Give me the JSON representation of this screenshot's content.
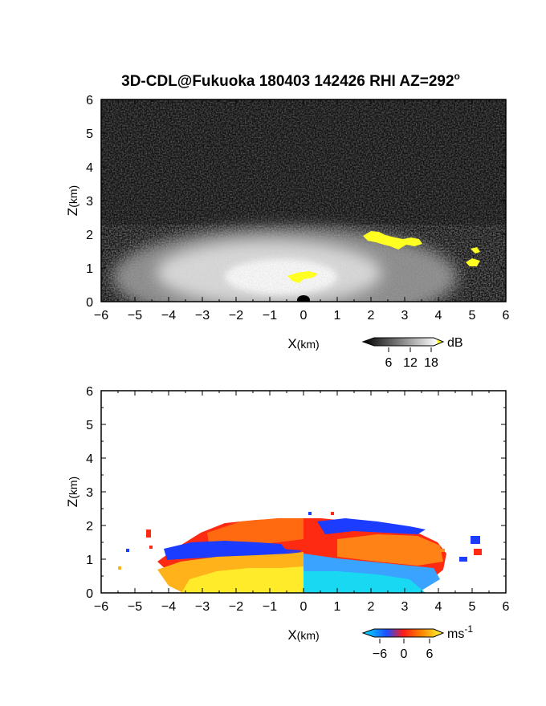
{
  "title": "3D-CDL@Fukuoka 180403 142426 RHI AZ=292",
  "title_superscript": "o",
  "chart_data": [
    {
      "type": "heatmap",
      "name": "backscatter-intensity",
      "xlabel_main": "X",
      "xlabel_unit": "(km)",
      "ylabel_main": "Z",
      "ylabel_unit": "(km)",
      "xlim": [
        -6,
        6
      ],
      "ylim": [
        0,
        6
      ],
      "xticks": [
        -6,
        -5,
        -4,
        -3,
        -2,
        -1,
        0,
        1,
        2,
        3,
        4,
        5,
        6
      ],
      "yticks": [
        0,
        1,
        2,
        3,
        4,
        5,
        6
      ],
      "background": "#111111",
      "colorbar": {
        "unit": "dB",
        "tick_labels": [
          "6",
          "12",
          "18"
        ],
        "range": [
          0,
          20
        ],
        "colors": [
          "#000000",
          "#ffffff",
          "#ffff00"
        ]
      },
      "features": [
        {
          "desc": "bright aerosol layer",
          "x_range": [
            -5,
            4.5
          ],
          "z_top": 2.0
        },
        {
          "desc": "yellow high-intensity patch",
          "x": [
            1.8,
            3.6
          ],
          "z": [
            1.65,
            2.0
          ]
        },
        {
          "desc": "yellow high-intensity patch",
          "x": [
            -0.5,
            0.6
          ],
          "z": [
            0.65,
            0.85
          ]
        },
        {
          "desc": "yellow high-intensity patch",
          "x": [
            4.9,
            5.3
          ],
          "z": [
            1.0,
            1.6
          ]
        }
      ]
    },
    {
      "type": "heatmap",
      "name": "radial-velocity",
      "xlabel_main": "X",
      "xlabel_unit": "(km)",
      "ylabel_main": "Z",
      "ylabel_unit": "(km)",
      "xlim": [
        -6,
        6
      ],
      "ylim": [
        0,
        6
      ],
      "xticks": [
        -6,
        -5,
        -4,
        -3,
        -2,
        -1,
        0,
        1,
        2,
        3,
        4,
        5,
        6
      ],
      "yticks": [
        0,
        1,
        2,
        3,
        4,
        5,
        6
      ],
      "background": "#ffffff",
      "colorbar": {
        "unit": "ms",
        "unit_superscript": "-1",
        "tick_labels": [
          "−6",
          "0",
          "6"
        ],
        "range": [
          -8,
          8
        ],
        "colors": [
          "#00e5ff",
          "#1e4bff",
          "#ff1a1a",
          "#ff8000",
          "#ffff33"
        ]
      },
      "features": [
        {
          "desc": "positive velocity (yellow-orange)",
          "x_range": [
            -3.5,
            0
          ],
          "z": [
            0,
            1.0
          ]
        },
        {
          "desc": "negative velocity (light blue)",
          "x_range": [
            0,
            4
          ],
          "z": [
            0,
            1.0
          ]
        },
        {
          "desc": "red/orange upper layer",
          "x_range": [
            -3,
            4
          ],
          "z": [
            1.0,
            2.1
          ]
        },
        {
          "desc": "blue band",
          "x_range": [
            -4,
            -1.5
          ],
          "z": [
            1.0,
            1.4
          ]
        },
        {
          "desc": "blue band",
          "x_range": [
            0.6,
            3.8
          ],
          "z": [
            1.7,
            2.1
          ]
        }
      ]
    }
  ]
}
